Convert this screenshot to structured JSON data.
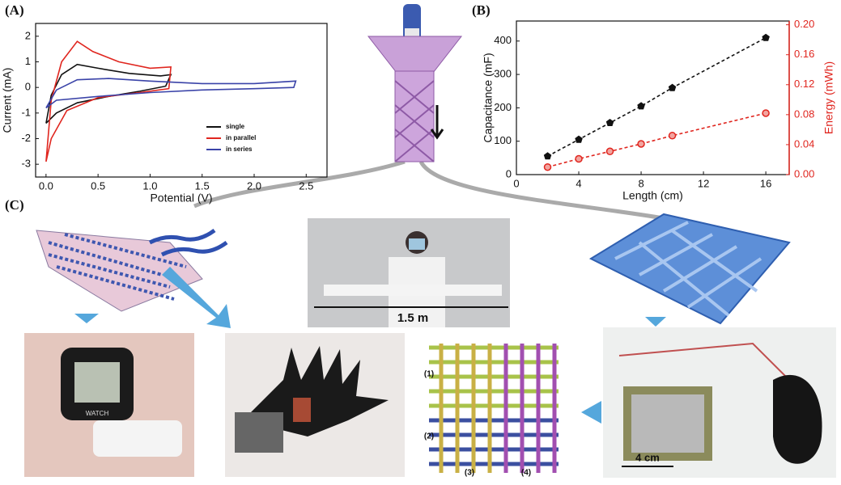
{
  "panel_labels": [
    "(A)",
    "(B)",
    "(C)"
  ],
  "chart_data": [
    {
      "type": "line",
      "xlabel": "Potential (V)",
      "ylabel": "Current (mA)",
      "xlim": [
        -0.1,
        2.7
      ],
      "ylim": [
        -3.5,
        2.5
      ],
      "xticks": [
        {
          "value": 0,
          "label": "0.0"
        },
        0.5,
        {
          "value": 1,
          "label": "1.0"
        },
        1.5,
        {
          "value": 2,
          "label": "2.0"
        },
        2.5
      ],
      "yticks": [
        -3,
        -2,
        -1,
        0,
        1,
        2
      ],
      "legend": "lower right",
      "series": [
        {
          "name": "single",
          "color": "#111111",
          "x": [
            0,
            0.05,
            0.15,
            0.3,
            0.5,
            0.8,
            1.1,
            1.2,
            1.15,
            0.9,
            0.6,
            0.3,
            0.1,
            0
          ],
          "values": [
            -1.4,
            -0.3,
            0.5,
            0.9,
            0.75,
            0.55,
            0.45,
            0.5,
            0.05,
            -0.15,
            -0.35,
            -0.6,
            -1.0,
            -1.4
          ]
        },
        {
          "name": "in parallel",
          "color": "#e0261f",
          "x": [
            0,
            0.05,
            0.15,
            0.3,
            0.45,
            0.7,
            1.0,
            1.2,
            1.18,
            0.9,
            0.5,
            0.2,
            0.05,
            0
          ],
          "values": [
            -2.9,
            -0.5,
            1.0,
            1.8,
            1.4,
            1.0,
            0.75,
            0.8,
            -0.05,
            -0.2,
            -0.4,
            -0.9,
            -2.0,
            -2.9
          ]
        },
        {
          "name": "in series",
          "color": "#3a43a8",
          "x": [
            0,
            0.1,
            0.3,
            0.6,
            1.0,
            1.5,
            2.0,
            2.4,
            2.38,
            2.0,
            1.5,
            1.0,
            0.5,
            0.1,
            0
          ],
          "values": [
            -0.8,
            -0.1,
            0.3,
            0.35,
            0.25,
            0.15,
            0.15,
            0.25,
            0.0,
            -0.05,
            -0.1,
            -0.2,
            -0.35,
            -0.5,
            -0.8
          ]
        }
      ]
    },
    {
      "type": "line",
      "xlabel": "Length (cm)",
      "ylabel": "Capacitance (mF)",
      "y2label": "Energy (mWh)",
      "xlim": [
        0,
        17.5
      ],
      "ylim": [
        0,
        460
      ],
      "y2lim": [
        0,
        0.205
      ],
      "xticks": [
        0,
        4,
        8,
        12,
        16
      ],
      "yticks": [
        0,
        100,
        200,
        300,
        400
      ],
      "y2ticks": [
        {
          "value": 0,
          "label": "0.00"
        },
        0.04,
        0.08,
        0.12,
        0.16,
        {
          "value": 0.2,
          "label": "0.20"
        }
      ],
      "x": [
        2,
        4,
        6,
        8,
        10,
        16
      ],
      "series": [
        {
          "name": "Capacitance",
          "color": "#111111",
          "values": [
            55,
            105,
            155,
            205,
            260,
            410
          ]
        },
        {
          "name": "Energy",
          "color": "#e0261f",
          "axis": "y2",
          "values": [
            0.01,
            0.021,
            0.031,
            0.041,
            0.052,
            0.082
          ]
        }
      ]
    }
  ],
  "annotations": {
    "span": "1.5 m",
    "scale": "4 cm",
    "watch": "WATCH",
    "regions": [
      "(1)",
      "(2)",
      "(3)",
      "(4)"
    ]
  }
}
